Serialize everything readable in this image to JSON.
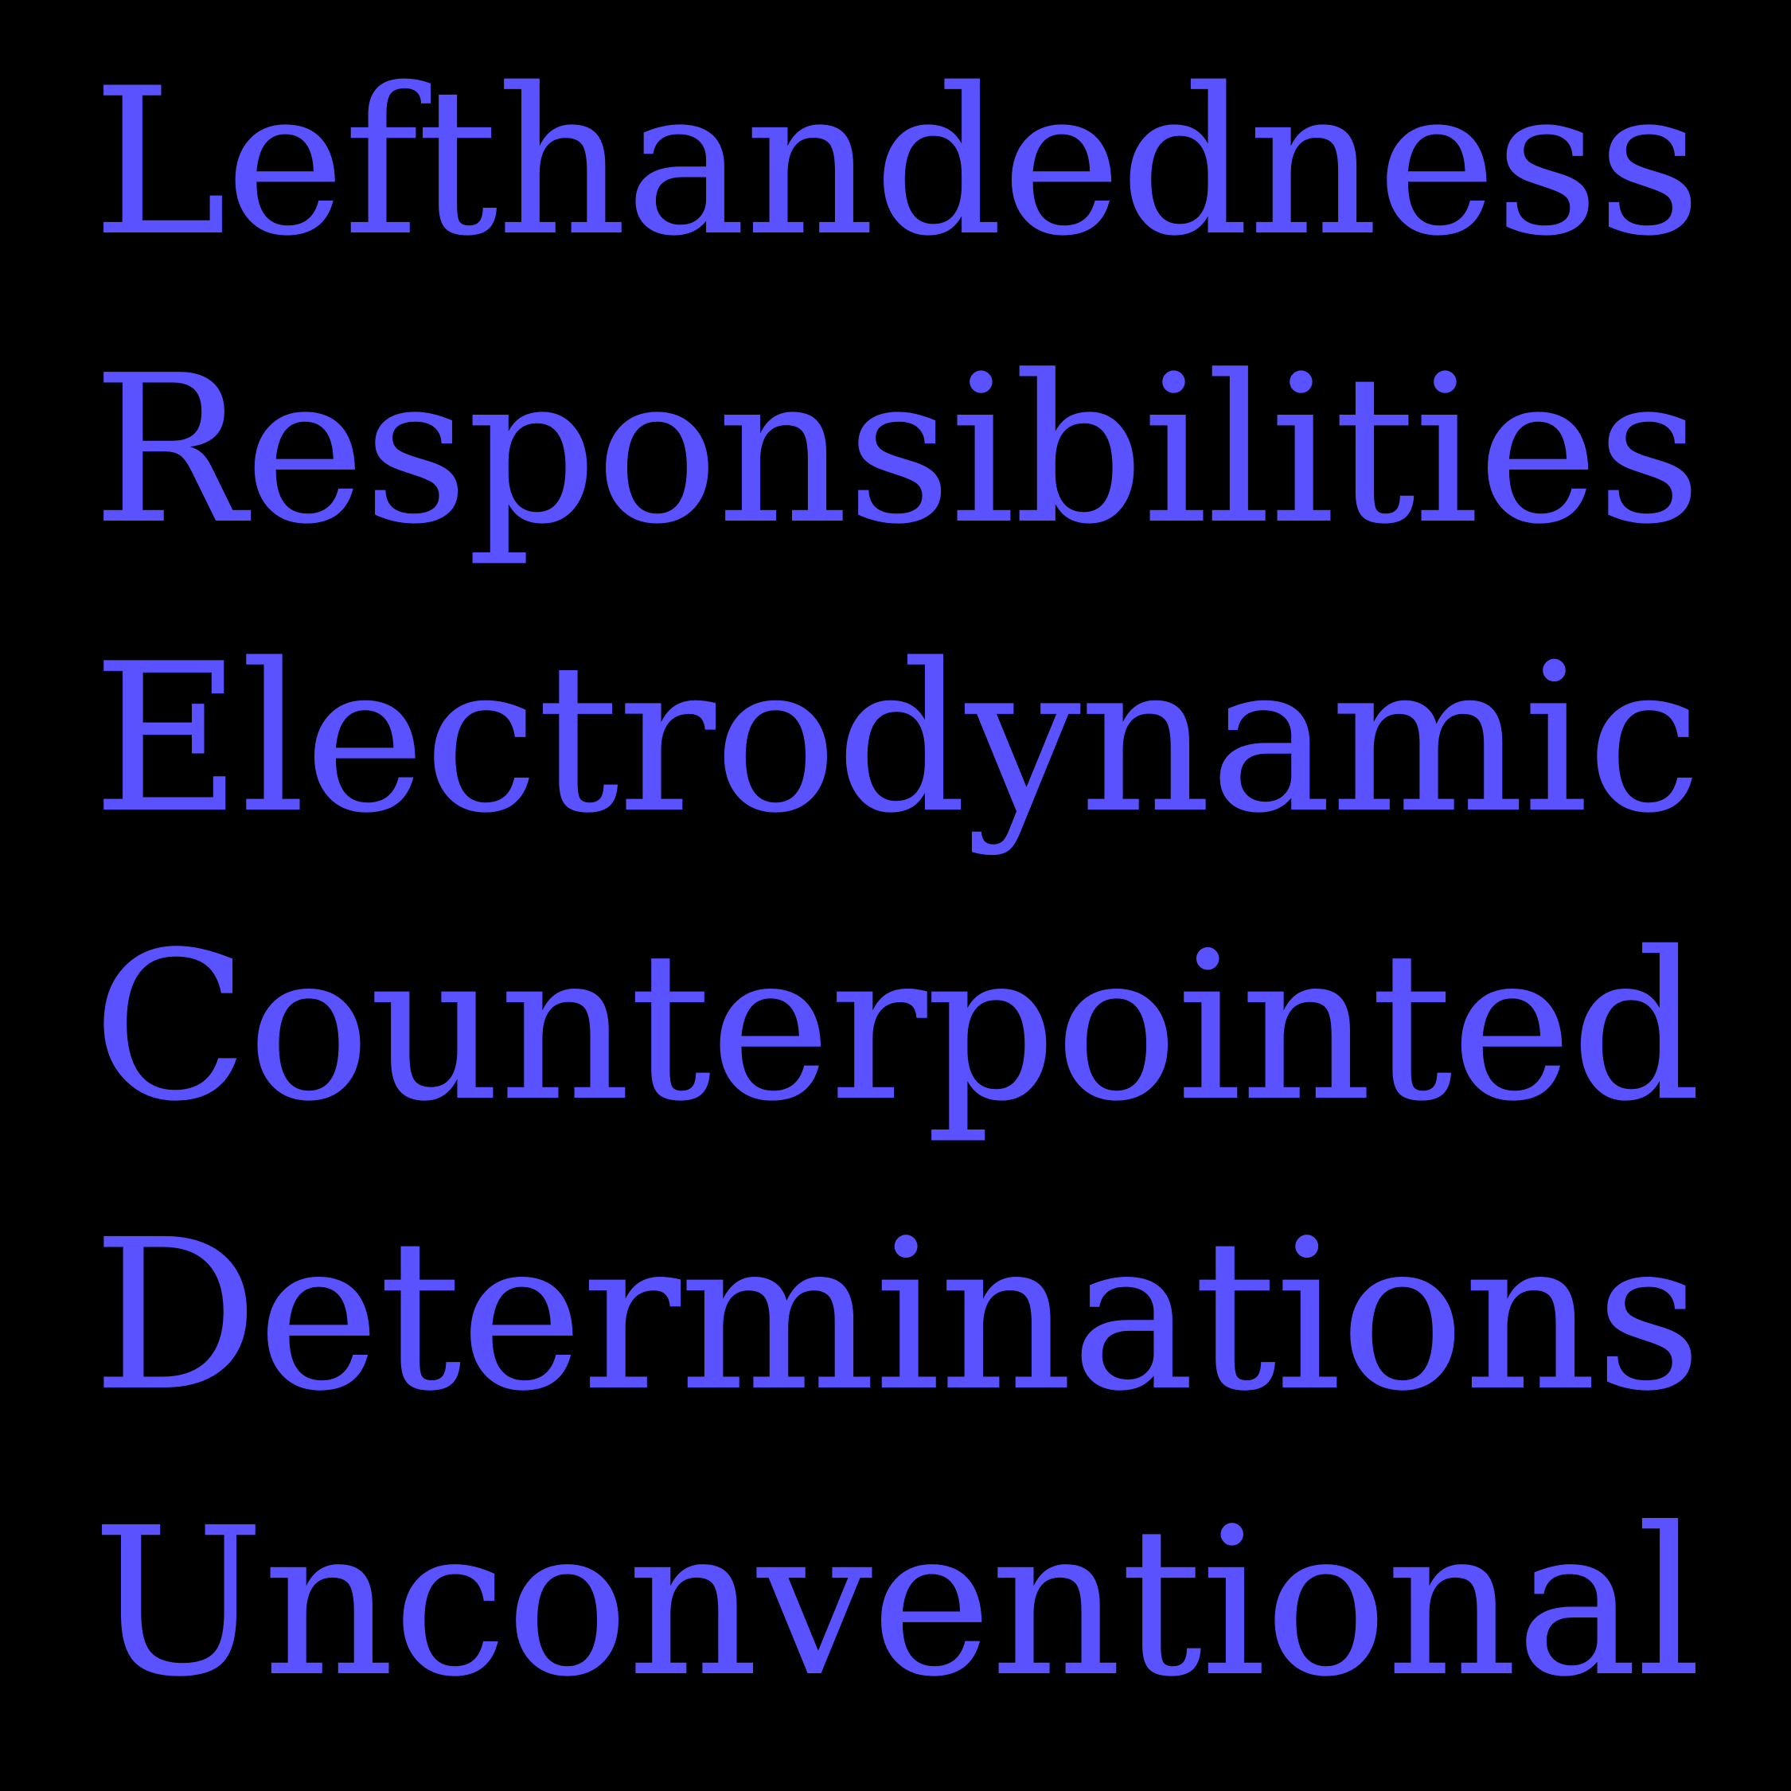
{
  "colors": {
    "background": "#000000",
    "text": "#5a52ff"
  },
  "words": [
    "Lefthandedness",
    "Responsibilities",
    "Electrodynamic",
    "Counterpointed",
    "Determinations",
    "Unconventional"
  ]
}
